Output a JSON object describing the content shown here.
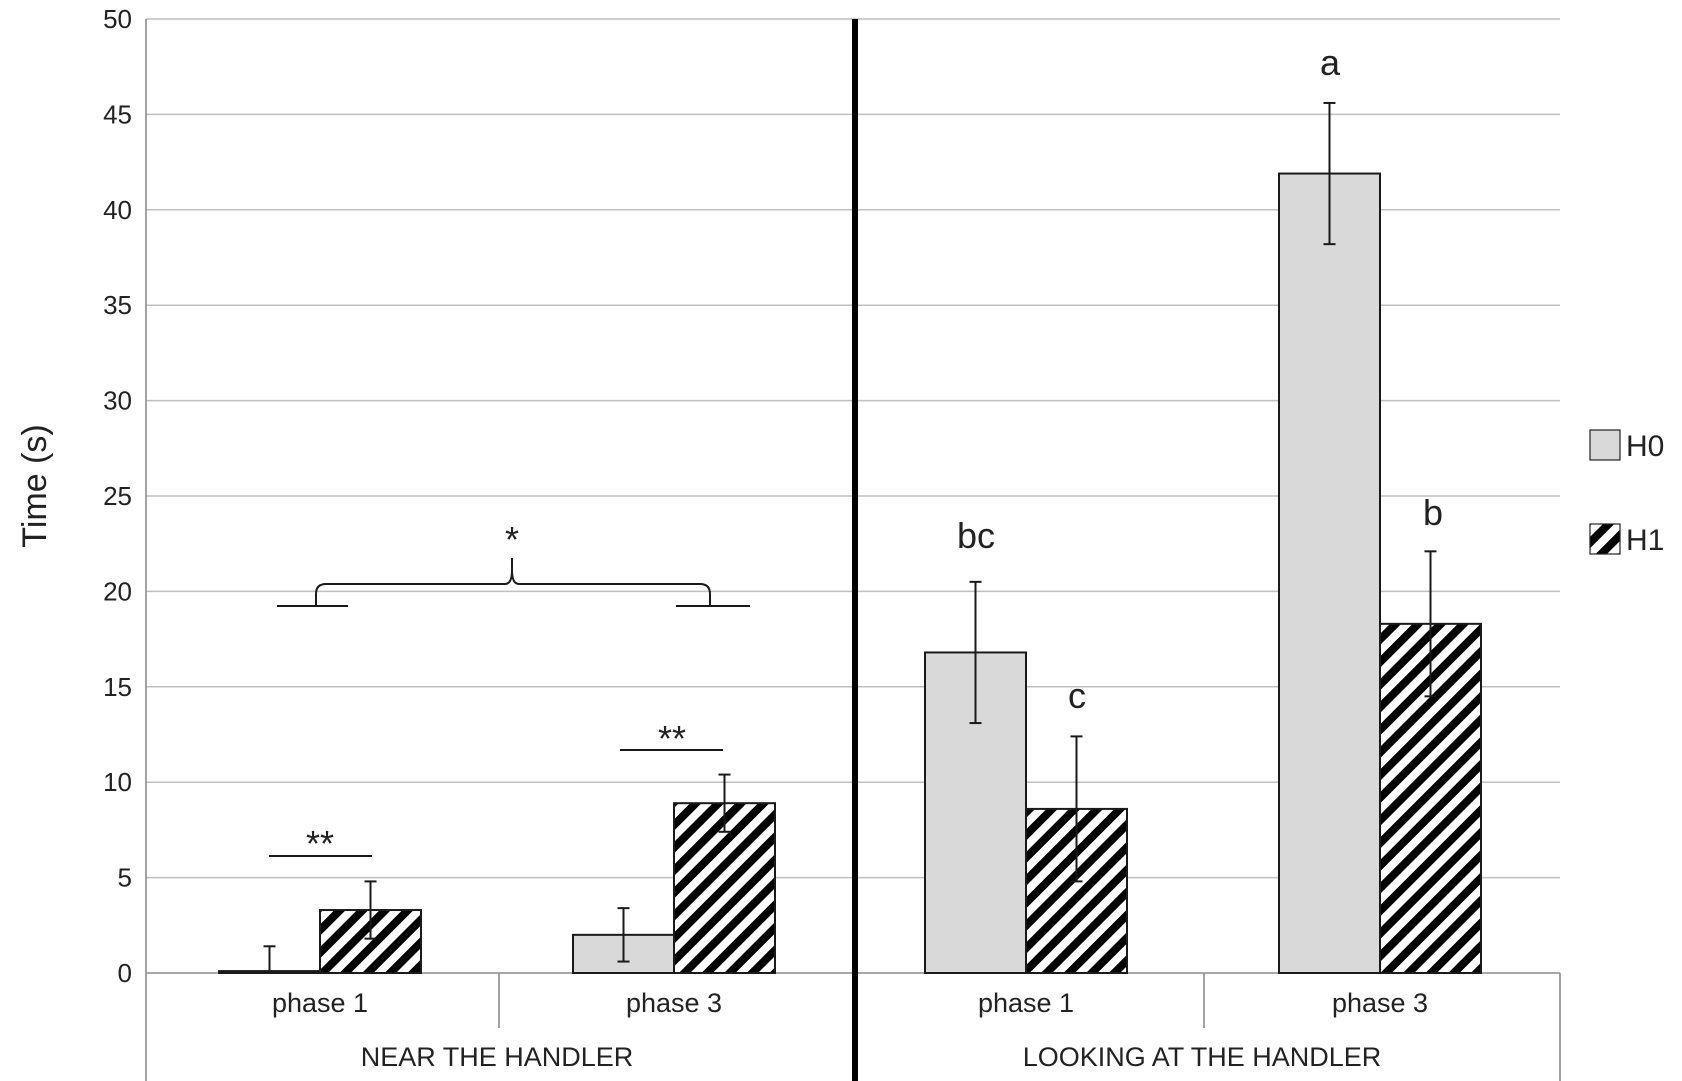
{
  "chart_data": {
    "type": "bar",
    "ylabel": "Time  (s)",
    "ylim": [
      0,
      50
    ],
    "yticks": [
      "0",
      "5",
      "10",
      "15",
      "20",
      "25",
      "30",
      "35",
      "40",
      "45",
      "50"
    ],
    "grid": true,
    "legend": {
      "placement": "right",
      "entries": [
        {
          "name": "H0",
          "pattern": "solid-grey"
        },
        {
          "name": "H1",
          "pattern": "diagonal-hatch"
        }
      ]
    },
    "groups": [
      {
        "label": "NEAR THE HANDLER",
        "categories": [
          "phase 1",
          "phase 3"
        ]
      },
      {
        "label": "LOOKING AT THE HANDLER",
        "categories": [
          "phase 1",
          "phase 3"
        ]
      }
    ],
    "series": [
      {
        "name": "H0",
        "values": [
          0.1,
          2.0,
          16.8,
          41.9
        ],
        "errors": [
          1.3,
          1.4,
          3.7,
          3.7
        ]
      },
      {
        "name": "H1",
        "values": [
          3.3,
          8.9,
          8.6,
          18.3
        ],
        "errors": [
          1.5,
          1.5,
          3.8,
          3.8
        ]
      }
    ],
    "annotations": {
      "pair_stars": [
        "**",
        "**"
      ],
      "brace_star": "*",
      "letters": [
        "bc",
        "c",
        "a",
        "b"
      ]
    }
  },
  "colors": {
    "h0_fill": "#d9d9d9",
    "grid": "#bfbfbf",
    "axis": "#8c8c8c",
    "divider": "#000000"
  }
}
